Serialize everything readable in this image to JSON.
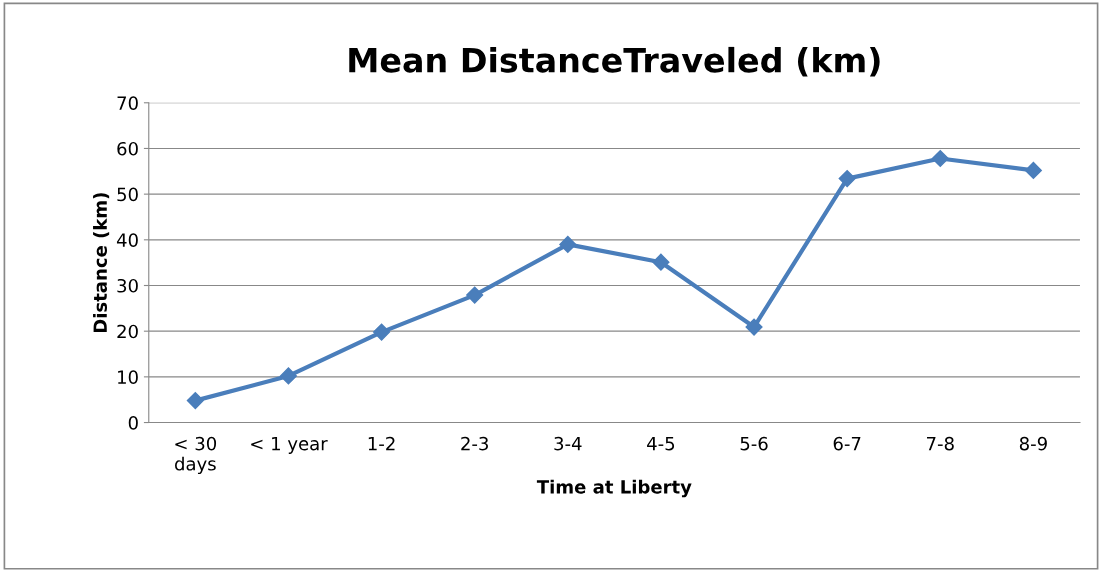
{
  "chart_data": {
    "type": "line",
    "title": "Mean DistanceTraveled (km)",
    "xlabel": "Time at Liberty",
    "ylabel": "Distance (km)",
    "categories": [
      "< 30\ndays",
      "< 1 year",
      "1-2",
      "2-3",
      "3-4",
      "4-5",
      "5-6",
      "6-7",
      "7-8",
      "8-9"
    ],
    "series": [
      {
        "color": "#4a7ebb",
        "values": [
          4.8,
          10.2,
          19.8,
          27.9,
          39.0,
          35.1,
          20.9,
          53.4,
          57.8,
          55.2
        ]
      }
    ],
    "ylim": [
      0,
      70
    ],
    "yticks": [
      0,
      10,
      20,
      30,
      40,
      50,
      60,
      70
    ],
    "grid": "y",
    "legend": false,
    "marker": "diamond",
    "line_style": "solid"
  }
}
